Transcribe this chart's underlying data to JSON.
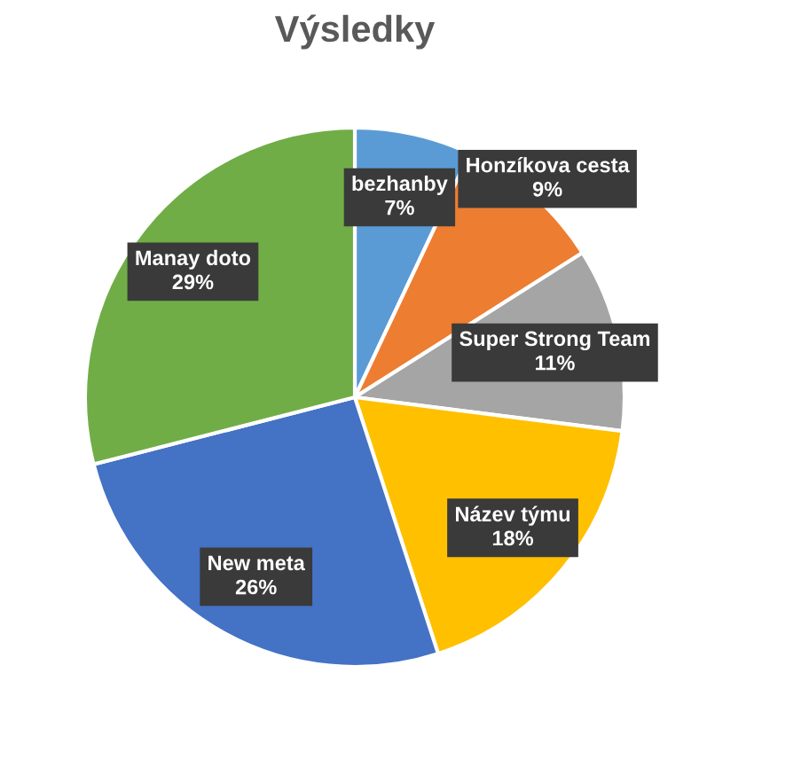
{
  "chart_data": {
    "type": "pie",
    "title": "Výsledky",
    "categories": [
      "bezhanby",
      "Honzíkova cesta",
      "Super Strong Team",
      "Název týmu",
      "New meta",
      "Manay doto"
    ],
    "values": [
      7,
      9,
      11,
      18,
      26,
      29
    ],
    "colors": [
      "#5b9bd5",
      "#ed7d31",
      "#a5a5a5",
      "#ffc000",
      "#4472c4",
      "#70ad47"
    ],
    "value_labels": [
      "7%",
      "9%",
      "11%",
      "18%",
      "26%",
      "29%"
    ],
    "legend": false
  }
}
